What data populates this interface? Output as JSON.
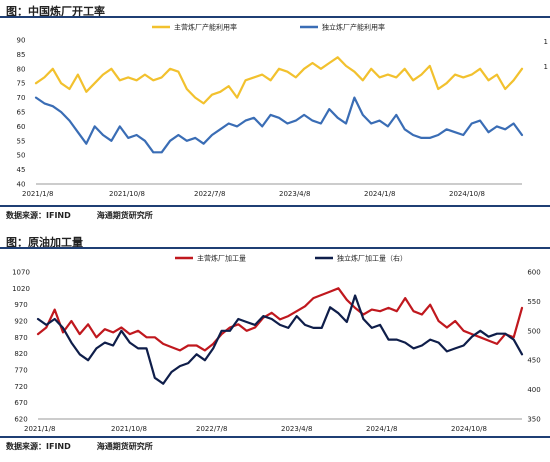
{
  "charts": [
    {
      "title": "图：中国炼厂开工率",
      "source_label": "数据来源：IFIND",
      "source_org": "海通期货研究所",
      "chart_data": {
        "type": "line",
        "title": "中国炼厂开工率",
        "x_tick_labels": [
          "2021/1/8",
          "2021/10/8",
          "2022/7/8",
          "2023/4/8",
          "2024/1/8",
          "2024/10/8"
        ],
        "x_range": [
          "2021/1/8",
          "2025/3/8"
        ],
        "y_ticks": [
          40,
          45,
          50,
          55,
          60,
          65,
          70,
          75,
          80,
          85,
          90
        ],
        "ylim": [
          40,
          90
        ],
        "y2_ticks": [
          "1",
          "1"
        ],
        "legend_position": "top",
        "grid": false,
        "series": [
          {
            "name": "主营炼厂产能利用率",
            "color": "#f2c12e",
            "axis": "left",
            "values": [
              75,
              77,
              80,
              75,
              73,
              78,
              72,
              75,
              78,
              80,
              76,
              77,
              76,
              78,
              76,
              77,
              80,
              79,
              73,
              70,
              68,
              71,
              72,
              74,
              70,
              76,
              77,
              78,
              76,
              80,
              79,
              77,
              80,
              82,
              80,
              82,
              84,
              81,
              79,
              76,
              80,
              77,
              78,
              77,
              80,
              76,
              78,
              81,
              73,
              75,
              78,
              77,
              78,
              80,
              76,
              78,
              73,
              76,
              80
            ]
          },
          {
            "name": "独立炼厂产能利用率",
            "color": "#3a6db5",
            "axis": "right",
            "values": [
              70,
              68,
              67,
              65,
              62,
              58,
              54,
              60,
              57,
              55,
              60,
              56,
              57,
              55,
              51,
              51,
              55,
              57,
              55,
              56,
              54,
              57,
              59,
              61,
              60,
              62,
              63,
              60,
              64,
              63,
              61,
              62,
              64,
              62,
              61,
              66,
              63,
              61,
              70,
              64,
              61,
              62,
              60,
              64,
              59,
              57,
              56,
              56,
              57,
              59,
              58,
              57,
              61,
              62,
              58,
              60,
              59,
              61,
              57
            ]
          }
        ]
      }
    },
    {
      "title": "图：原油加工量",
      "source_label": "数据来源：IFIND",
      "source_org": "海通期货研究所",
      "chart_data": {
        "type": "line",
        "title": "原油加工量",
        "x_tick_labels": [
          "2021/1/8",
          "2021/10/8",
          "2022/7/8",
          "2023/4/8",
          "2024/1/8",
          "2024/10/8"
        ],
        "x_range": [
          "2021/1/8",
          "2025/3/8"
        ],
        "y_ticks": [
          620,
          670,
          720,
          770,
          820,
          870,
          920,
          970,
          1020,
          1070
        ],
        "ylim": [
          620,
          1070
        ],
        "y2_ticks": [
          350,
          400,
          450,
          500,
          550,
          600
        ],
        "y2lim": [
          350,
          600
        ],
        "legend_position": "top",
        "grid": false,
        "series": [
          {
            "name": "主营炼厂加工量",
            "color": "#c0181e",
            "axis": "left",
            "values": [
              880,
              900,
              955,
              885,
              920,
              880,
              910,
              870,
              895,
              885,
              900,
              880,
              890,
              870,
              870,
              850,
              840,
              830,
              845,
              845,
              830,
              850,
              880,
              900,
              910,
              890,
              900,
              930,
              945,
              925,
              935,
              950,
              965,
              990,
              1000,
              1010,
              1020,
              985,
              960,
              940,
              955,
              950,
              960,
              950,
              990,
              950,
              940,
              970,
              920,
              900,
              920,
              890,
              880,
              870,
              860,
              850,
              880,
              870,
              960
            ]
          },
          {
            "name": "独立炼厂加工量（右）",
            "color": "#0f1e4a",
            "axis": "right",
            "values": [
              520,
              510,
              520,
              505,
              480,
              460,
              450,
              470,
              480,
              475,
              500,
              480,
              470,
              470,
              420,
              410,
              430,
              440,
              445,
              460,
              450,
              470,
              500,
              500,
              520,
              515,
              510,
              525,
              520,
              510,
              505,
              525,
              510,
              505,
              505,
              540,
              530,
              515,
              560,
              520,
              505,
              510,
              485,
              485,
              480,
              470,
              475,
              485,
              480,
              465,
              470,
              475,
              490,
              500,
              490,
              495,
              495,
              485,
              460
            ]
          }
        ]
      }
    }
  ]
}
